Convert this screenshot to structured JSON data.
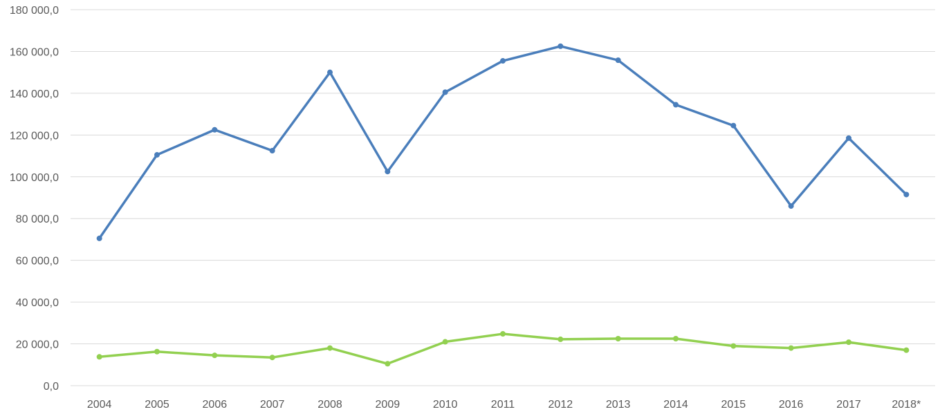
{
  "chart_data": {
    "type": "line",
    "title": "",
    "xlabel": "",
    "ylabel": "",
    "x": [
      "2004",
      "2005",
      "2006",
      "2007",
      "2008",
      "2009",
      "2010",
      "2011",
      "2012",
      "2013",
      "2014",
      "2015",
      "2016",
      "2017",
      "2018*"
    ],
    "yticks": [
      "0,0",
      "20 000,0",
      "40 000,0",
      "60 000,0",
      "80 000,0",
      "100 000,0",
      "120 000,0",
      "140 000,0",
      "160 000,0",
      "180 000,0"
    ],
    "ylim": [
      0,
      180000
    ],
    "grid": true,
    "legend": "none",
    "series": [
      {
        "color": "#4a7ebb",
        "values": [
          70500,
          110500,
          122500,
          112500,
          150000,
          102500,
          140500,
          155500,
          162500,
          155800,
          134500,
          124500,
          86000,
          118500,
          91500
        ]
      },
      {
        "color": "#92d050",
        "values": [
          13800,
          16300,
          14500,
          13500,
          18000,
          10500,
          21000,
          24800,
          22200,
          22500,
          22500,
          19000,
          18000,
          20800,
          17000
        ]
      }
    ]
  }
}
